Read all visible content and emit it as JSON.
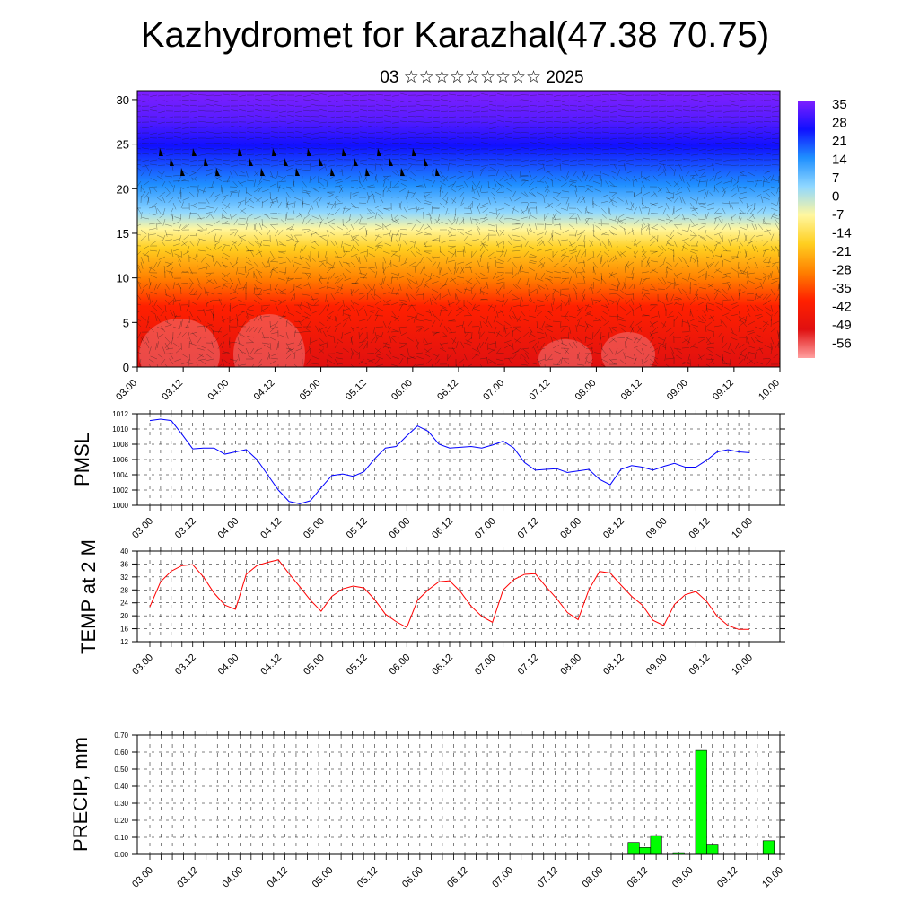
{
  "figure": {
    "title": "Kazhydromet for Karazhal(47.38 70.75)",
    "subtitle": "03 ☆☆☆☆☆☆☆☆☆ 2025",
    "time_ticks": [
      "03.00",
      "03.12",
      "04.00",
      "04.12",
      "05.00",
      "05.12",
      "06.00",
      "06.12",
      "07.00",
      "07.12",
      "08.00",
      "08.12",
      "09.00",
      "09.12",
      "10.00"
    ]
  },
  "chart_data": [
    {
      "type": "heatmap",
      "title": "",
      "ylabel": "",
      "xlabel": "",
      "ylim": [
        0,
        31
      ],
      "y_ticks": [
        "0",
        "5",
        "10",
        "15",
        "20",
        "25",
        "30"
      ],
      "colorbar_labels": [
        "35",
        "28",
        "21",
        "14",
        "7",
        "0",
        "-7",
        "-14",
        "-21",
        "-28",
        "-35",
        "-42",
        "-49",
        "-56"
      ],
      "colorbar_range": [
        -60,
        38
      ],
      "colormap": [
        "#7f1fff",
        "#1010ff",
        "#1f8fff",
        "#8fd7ff",
        "#fff7a0",
        "#ffcf20",
        "#ff8000",
        "#ff2000",
        "#e01010",
        "#ffa0a0"
      ],
      "wind_barbs": true
    },
    {
      "type": "line",
      "ylabel": "PMSL",
      "ylim": [
        1000,
        1012
      ],
      "y_ticks": [
        "1000",
        "1002",
        "1004",
        "1006",
        "1008",
        "1010",
        "1012"
      ],
      "color": "#0000ff",
      "series": [
        {
          "values": [
            1011.1,
            1011.3,
            1011.1,
            1009.3,
            1007.4,
            1007.5,
            1007.5,
            1006.7,
            1007.0,
            1007.3,
            1006.0,
            1004.0,
            1002.0,
            1000.5,
            1000.2,
            1000.6,
            1002.3,
            1003.9,
            1004.1,
            1003.8,
            1004.4,
            1006.1,
            1007.5,
            1007.7,
            1009.1,
            1010.4,
            1009.7,
            1008.0,
            1007.5,
            1007.6,
            1007.7,
            1007.5,
            1007.9,
            1008.4,
            1007.5,
            1005.6,
            1004.6,
            1004.7,
            1004.8,
            1004.3,
            1004.5,
            1004.7,
            1003.4,
            1002.7,
            1004.7,
            1005.2,
            1005.0,
            1004.6,
            1005.1,
            1005.5,
            1005.0,
            1005.0,
            1005.9,
            1007.0,
            1007.3,
            1007.0,
            1006.9
          ]
        }
      ]
    },
    {
      "type": "line",
      "ylabel": "TEMP at 2 M",
      "ylim": [
        12,
        40
      ],
      "y_ticks": [
        "12",
        "16",
        "20",
        "24",
        "28",
        "32",
        "36",
        "40"
      ],
      "color": "#ff0000",
      "series": [
        {
          "values": [
            22.8,
            30.5,
            33.8,
            35.5,
            35.8,
            32.0,
            27.0,
            23.3,
            22.0,
            32.8,
            35.5,
            36.5,
            37.3,
            33.0,
            29.0,
            24.8,
            21.4,
            26.0,
            28.3,
            29.2,
            28.6,
            25.0,
            20.5,
            18.2,
            16.4,
            24.8,
            28.0,
            30.5,
            30.8,
            27.5,
            23.0,
            19.8,
            18.0,
            28.0,
            31.2,
            32.8,
            33.0,
            29.0,
            25.3,
            21.0,
            18.8,
            28.0,
            33.7,
            33.2,
            29.5,
            26.0,
            23.3,
            18.6,
            17.0,
            23.5,
            26.5,
            27.5,
            24.5,
            19.8,
            17.0,
            15.8,
            15.8
          ]
        }
      ]
    },
    {
      "type": "bar",
      "ylabel": "PRECIP, mm",
      "ylim": [
        0,
        0.7
      ],
      "y_ticks": [
        "0.00",
        "0.10",
        "0.20",
        "0.30",
        "0.40",
        "0.50",
        "0.60",
        "0.70"
      ],
      "color": "#00ff00",
      "bars": [
        {
          "x": 43,
          "value": 0.07
        },
        {
          "x": 44,
          "value": 0.04
        },
        {
          "x": 45,
          "value": 0.11
        },
        {
          "x": 47,
          "value": 0.01
        },
        {
          "x": 49,
          "value": 0.61
        },
        {
          "x": 50,
          "value": 0.06
        },
        {
          "x": 55,
          "value": 0.08
        }
      ]
    }
  ]
}
